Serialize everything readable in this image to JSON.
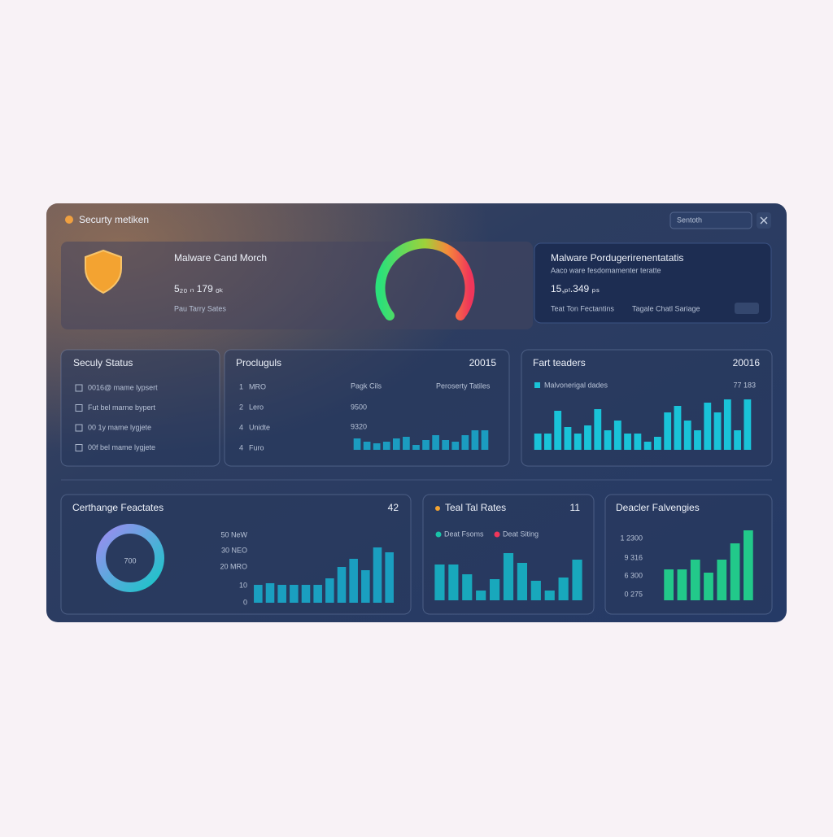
{
  "header": {
    "title": "Securty metiken",
    "search": "Sentoth"
  },
  "overview": {
    "title": "Malware Cand Morch",
    "value": "5₂₀ ₙ 179 ₒₖ",
    "caption": "Pau Tarry Sates"
  },
  "highlight": {
    "title": "Malware Pordugerirenentatatis",
    "subtitle": "Aaco ware fesdomamenter teratte",
    "value": "15,ₚₗ.349 ₚₛ",
    "links": [
      "Teat Ton Fectantins",
      "Tagale Chatl Sariage"
    ]
  },
  "status": {
    "title": "Seculy Status",
    "items": [
      "0016@ mame lypsert",
      "Fut bel marne bypert",
      "00 1y mame lygjete",
      "00f bel mame lygjete"
    ]
  },
  "products": {
    "title": "Procluguls",
    "badge": "20015",
    "columns": [
      "Pagk Cils",
      "Peroserty Tatiles"
    ],
    "rows": [
      [
        "1",
        "MRO"
      ],
      [
        "2",
        "Lero"
      ],
      [
        "4",
        "Unidte"
      ],
      [
        "4",
        "Furo"
      ]
    ],
    "figures": [
      "9500",
      "9320"
    ],
    "chart": {
      "type": "bar",
      "color": "#1b9cc0",
      "ylim": [
        0,
        30
      ],
      "values": [
        14,
        10,
        8,
        10,
        14,
        16,
        6,
        12,
        18,
        12,
        10,
        18,
        24,
        24
      ]
    }
  },
  "leaders": {
    "title": "Fart teaders",
    "badge": "20016",
    "legend": "Malvonerigal dades",
    "note": "77 183",
    "chart": {
      "type": "bar",
      "color": "#19c3d8",
      "ylim": [
        0,
        70
      ],
      "values": [
        20,
        20,
        48,
        28,
        20,
        30,
        50,
        24,
        36,
        20,
        20,
        10,
        16,
        46,
        54,
        36,
        24,
        58,
        46,
        62,
        24,
        62
      ]
    }
  },
  "exchange": {
    "title": "Certhange Feactates",
    "badge": "42",
    "donut_label": "700",
    "axis_labels": [
      "50 NeW",
      "30 NEO",
      "20 MRO",
      "10",
      "0"
    ],
    "chart": {
      "type": "bar",
      "color": "#1a9fc0",
      "ylim": [
        0,
        70
      ],
      "values": [
        22,
        24,
        22,
        22,
        22,
        22,
        30,
        44,
        54,
        40,
        68,
        62
      ]
    }
  },
  "rates": {
    "title": "Teal Tal Rates",
    "badge": "11",
    "legend": [
      "Deat Fsoms",
      "Deat Siting"
    ],
    "chart": {
      "type": "bar",
      "color": "#18a8bc",
      "ylim": [
        0,
        60
      ],
      "values": [
        44,
        44,
        32,
        12,
        26,
        58,
        46,
        24,
        12,
        28,
        50
      ]
    }
  },
  "dealer": {
    "title": "Deacler Falvengies",
    "axis_labels": [
      "1 2300",
      "9 316",
      "6 300",
      "0 275"
    ],
    "chart": {
      "type": "bar",
      "color": "#22c98a",
      "ylim": [
        0,
        90
      ],
      "values": [
        38,
        38,
        50,
        34,
        50,
        70,
        86
      ]
    }
  }
}
